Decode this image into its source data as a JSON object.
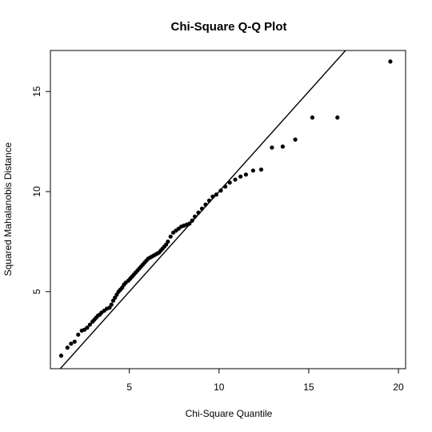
{
  "chart_data": {
    "type": "scatter",
    "title": "Chi-Square Q-Q Plot",
    "xlabel": "Chi-Square Quantile",
    "ylabel": "Squared Mahalanobis Distance",
    "xlim": [
      0.6,
      20.4
    ],
    "ylim": [
      1.15,
      17.05
    ],
    "xticks": [
      5,
      10,
      15,
      20
    ],
    "yticks": [
      5,
      10,
      15
    ],
    "grid": false,
    "legend": "none",
    "reference_line": {
      "intercept": 0,
      "slope": 1
    },
    "point_color": "#000000",
    "series": [
      {
        "x": [
          1.2,
          1.55,
          1.75,
          1.95,
          2.15,
          2.35,
          2.5,
          2.65,
          2.8,
          2.95,
          3.05,
          3.15,
          3.25,
          3.35,
          3.45,
          3.6,
          3.75,
          3.9,
          4.0,
          4.1,
          4.2,
          4.3,
          4.4,
          4.5,
          4.6,
          4.7,
          4.8,
          4.95,
          5.05,
          5.15,
          5.25,
          5.35,
          5.45,
          5.55,
          5.65,
          5.75,
          5.85,
          5.95,
          6.05,
          6.15,
          6.25,
          6.35,
          6.45,
          6.55,
          6.65,
          6.75,
          6.85,
          6.95,
          7.05,
          7.15,
          7.3,
          7.45,
          7.6,
          7.75,
          7.9,
          8.05,
          8.2,
          8.35,
          8.5,
          8.65,
          8.85,
          9.05,
          9.25,
          9.45,
          9.65,
          9.85,
          10.1,
          10.35,
          10.6,
          10.9,
          11.2,
          11.5,
          11.9,
          12.35,
          12.95,
          13.55,
          14.25,
          15.2,
          16.6,
          19.55
        ],
        "y": [
          1.8,
          2.2,
          2.4,
          2.5,
          2.85,
          3.05,
          3.1,
          3.2,
          3.35,
          3.5,
          3.6,
          3.7,
          3.8,
          3.85,
          3.95,
          4.05,
          4.15,
          4.2,
          4.35,
          4.55,
          4.7,
          4.85,
          5.0,
          5.1,
          5.2,
          5.35,
          5.45,
          5.55,
          5.65,
          5.75,
          5.85,
          5.95,
          6.05,
          6.15,
          6.25,
          6.35,
          6.45,
          6.55,
          6.65,
          6.7,
          6.75,
          6.8,
          6.85,
          6.9,
          6.95,
          7.05,
          7.15,
          7.25,
          7.35,
          7.5,
          7.75,
          7.95,
          8.05,
          8.15,
          8.25,
          8.3,
          8.35,
          8.4,
          8.55,
          8.75,
          8.95,
          9.15,
          9.35,
          9.55,
          9.75,
          9.85,
          10.05,
          10.25,
          10.45,
          10.6,
          10.75,
          10.85,
          11.05,
          11.1,
          12.2,
          12.25,
          12.6,
          13.7,
          13.7,
          16.5
        ]
      }
    ]
  }
}
